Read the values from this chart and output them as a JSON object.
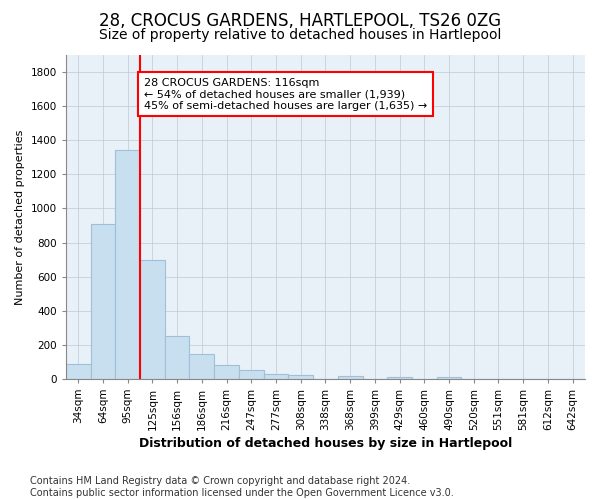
{
  "title": "28, CROCUS GARDENS, HARTLEPOOL, TS26 0ZG",
  "subtitle": "Size of property relative to detached houses in Hartlepool",
  "xlabel": "Distribution of detached houses by size in Hartlepool",
  "ylabel": "Number of detached properties",
  "bar_categories": [
    "34sqm",
    "64sqm",
    "95sqm",
    "125sqm",
    "156sqm",
    "186sqm",
    "216sqm",
    "247sqm",
    "277sqm",
    "308sqm",
    "338sqm",
    "368sqm",
    "399sqm",
    "429sqm",
    "460sqm",
    "490sqm",
    "520sqm",
    "551sqm",
    "581sqm",
    "612sqm",
    "642sqm"
  ],
  "bar_values": [
    85,
    910,
    1340,
    700,
    250,
    145,
    80,
    55,
    30,
    20,
    0,
    15,
    0,
    10,
    0,
    10,
    0,
    0,
    0,
    0,
    0
  ],
  "bar_color": "#c8dff0",
  "bar_edgecolor": "#a0c0d8",
  "annotation_line1": "28 CROCUS GARDENS: 116sqm",
  "annotation_line2": "← 54% of detached houses are smaller (1,939)",
  "annotation_line3": "45% of semi-detached houses are larger (1,635) →",
  "redline_index": 3,
  "ylim": [
    0,
    1900
  ],
  "yticks": [
    0,
    200,
    400,
    600,
    800,
    1000,
    1200,
    1400,
    1600,
    1800
  ],
  "footnote": "Contains HM Land Registry data © Crown copyright and database right 2024.\nContains public sector information licensed under the Open Government Licence v3.0.",
  "background_color": "#ffffff",
  "plot_bg_color": "#e8f0f8",
  "grid_color": "#c0c8d8",
  "title_fontsize": 12,
  "subtitle_fontsize": 10,
  "ylabel_fontsize": 8,
  "xlabel_fontsize": 9,
  "tick_fontsize": 7.5,
  "footnote_fontsize": 7,
  "annot_fontsize": 8
}
